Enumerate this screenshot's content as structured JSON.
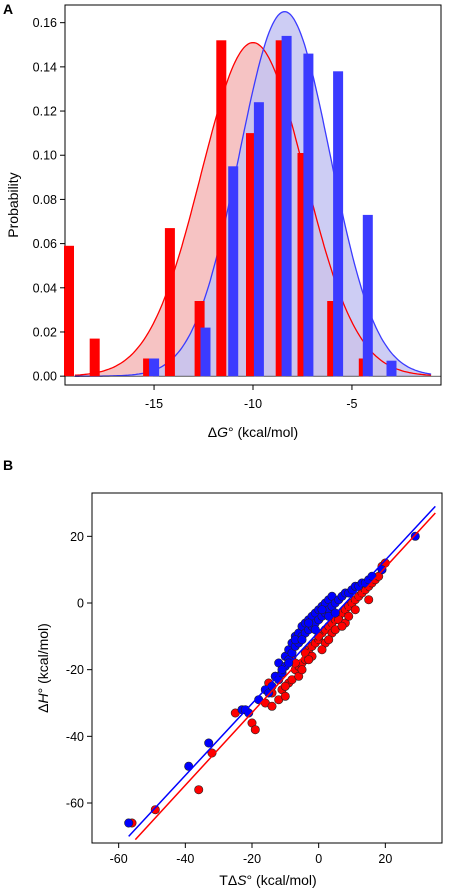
{
  "chart_data": [
    {
      "panel": "A",
      "type": "bar",
      "xlabel_prefix": "Δ",
      "xlabel_italic": "G",
      "xlabel_suffix": "° (kcal/mol)",
      "ylabel": "Probability",
      "xlim": [
        -19.5,
        -0.5
      ],
      "ylim": [
        -0.004,
        0.168
      ],
      "xticks": [
        -15,
        -10,
        -5
      ],
      "yticks": [
        0.0,
        0.02,
        0.04,
        0.06,
        0.08,
        0.1,
        0.12,
        0.14,
        0.16
      ],
      "ytick_labels": [
        "0.00",
        "0.02",
        "0.04",
        "0.06",
        "0.08",
        "0.10",
        "0.12",
        "0.14",
        "0.16"
      ],
      "xtick_labels": [
        "-15",
        "-10",
        "-5"
      ],
      "grid": false,
      "series": [
        {
          "color": "#ff0000",
          "fill": "#f4b8b8",
          "x": [
            -19.3,
            -18.0,
            -15.3,
            -14.2,
            -12.7,
            -11.6,
            -10.1,
            -8.6,
            -7.5,
            -6.0,
            -4.4
          ],
          "values": [
            0.059,
            0.017,
            0.008,
            0.067,
            0.034,
            0.152,
            0.11,
            0.152,
            0.101,
            0.034,
            0.008
          ],
          "density": {
            "mean": -10.0,
            "sd": 2.62,
            "peak": 0.151
          }
        },
        {
          "color": "#3b3bff",
          "fill": "#c4c4f2",
          "x": [
            -15.0,
            -12.4,
            -11.0,
            -9.7,
            -8.3,
            -7.2,
            -5.7,
            -4.2,
            -3.0
          ],
          "values": [
            0.008,
            0.022,
            0.095,
            0.124,
            0.154,
            0.146,
            0.138,
            0.073,
            0.007
          ],
          "density": {
            "mean": -8.4,
            "sd": 2.3,
            "peak": 0.165
          }
        }
      ]
    },
    {
      "panel": "B",
      "type": "scatter",
      "xlabel_prefix": "T",
      "xlabel_delta": "Δ",
      "xlabel_italic": "S",
      "xlabel_suffix": "° (kcal/mol)",
      "ylabel_prefix": "Δ",
      "ylabel_italic": "H",
      "ylabel_suffix": "° (kcal/mol)",
      "xlim": [
        -68,
        37
      ],
      "ylim": [
        -72,
        33
      ],
      "xticks": [
        -60,
        -40,
        -20,
        0,
        20
      ],
      "yticks": [
        -60,
        -40,
        -20,
        0,
        20
      ],
      "xtick_labels": [
        "-60",
        "-40",
        "-20",
        "0",
        "20"
      ],
      "ytick_labels": [
        "-60",
        "-40",
        "-20",
        "0",
        "20"
      ],
      "grid": false,
      "series": [
        {
          "color": "#ff0000",
          "line": {
            "x": [
              -55,
              35
            ],
            "y": [
              -71,
              27
            ]
          },
          "x": [
            -56,
            -49,
            -36,
            -32,
            -25,
            -20,
            -19,
            -16,
            -14,
            -12,
            -11,
            -10,
            -9,
            -8,
            -7,
            -6,
            -5,
            -4,
            -3,
            -2,
            -1,
            0,
            1,
            2,
            3,
            4,
            5,
            6,
            7,
            8,
            9,
            10,
            11,
            12,
            13,
            14,
            15,
            16,
            17,
            18,
            19,
            20,
            -13,
            -10,
            -8,
            -6,
            -4,
            -2,
            0,
            2,
            4,
            6,
            8,
            -14,
            -11,
            -7,
            -3,
            1,
            5,
            9,
            -15,
            -5,
            3,
            7,
            11,
            15
          ],
          "y": [
            -66,
            -62,
            -56,
            -45,
            -33,
            -36,
            -38,
            -30,
            -31,
            -29,
            -26,
            -28,
            -24,
            -23,
            -20,
            -19,
            -18,
            -17,
            -14,
            -13,
            -12,
            -11,
            -9,
            -8,
            -7,
            -6,
            -5,
            -4,
            -3,
            -2,
            -1,
            0,
            1,
            2,
            3,
            4,
            5,
            6,
            7,
            8,
            11,
            12,
            -22,
            -25,
            -16,
            -22,
            -15,
            -16,
            -10,
            -12,
            -9,
            -5,
            -6,
            -27,
            -21,
            -18,
            -17,
            -14,
            -8,
            -4,
            -24,
            -20,
            -11,
            -7,
            -2,
            1
          ]
        },
        {
          "color": "#0000ff",
          "line": {
            "x": [
              -57,
              35
            ],
            "y": [
              -70,
              29
            ]
          },
          "x": [
            -57,
            -39,
            -33,
            -23,
            -22,
            -21,
            -18,
            -16,
            -15,
            -14,
            -13,
            -12,
            -12,
            -11,
            -10,
            -10,
            -9,
            -9,
            -8,
            -8,
            -7,
            -7,
            -6,
            -6,
            -5,
            -5,
            -4,
            -4,
            -3,
            -3,
            -2,
            -2,
            -1,
            -1,
            0,
            0,
            1,
            1,
            2,
            2,
            3,
            3,
            4,
            4,
            5,
            6,
            7,
            8,
            9,
            10,
            11,
            12,
            13,
            14,
            15,
            16,
            19,
            29,
            -11,
            -9,
            -7,
            -5,
            -3,
            -1,
            1,
            3,
            5
          ],
          "y": [
            -66,
            -49,
            -42,
            -32,
            -32,
            -33,
            -29,
            -26,
            -27,
            -25,
            -22,
            -23,
            -18,
            -21,
            -19,
            -16,
            -17,
            -14,
            -15,
            -12,
            -13,
            -10,
            -12,
            -9,
            -10,
            -7,
            -9,
            -6,
            -8,
            -5,
            -7,
            -4,
            -6,
            -3,
            -5,
            -2,
            -4,
            -1,
            -3,
            0,
            -2,
            1,
            -1,
            2,
            0,
            1,
            2,
            3,
            3,
            4,
            5,
            5,
            6,
            6,
            7,
            8,
            10,
            20,
            -20,
            -18,
            -11,
            -11,
            -6,
            -8,
            -2,
            -4,
            -3
          ]
        }
      ]
    }
  ]
}
